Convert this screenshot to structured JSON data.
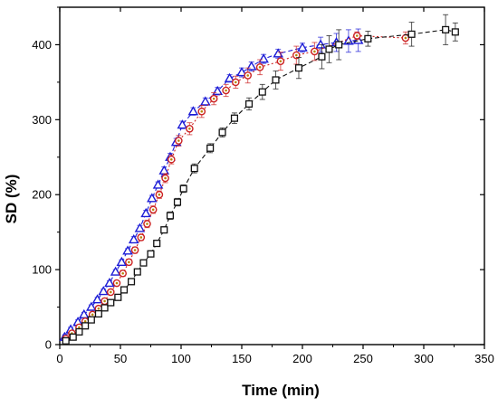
{
  "chart_data": {
    "type": "scatter",
    "title": "",
    "xlabel": "Time (min)",
    "ylabel": "SD (%)",
    "xlim": [
      0,
      350
    ],
    "ylim": [
      0,
      450
    ],
    "xticks": [
      0,
      50,
      100,
      150,
      200,
      250,
      300,
      350
    ],
    "yticks": [
      0,
      100,
      200,
      300,
      400
    ],
    "xtick_labels": [
      "0",
      "50",
      "100",
      "150",
      "200",
      "250",
      "300",
      "350"
    ],
    "ytick_labels": [
      "0",
      "100",
      "200",
      "300",
      "400"
    ],
    "grid": false,
    "legend": "none",
    "series": [
      {
        "marker": "triangle",
        "color": "#1c1cd6",
        "line_style": "dashed",
        "points": [
          {
            "x": 4,
            "y": 10,
            "err": 3
          },
          {
            "x": 9,
            "y": 20,
            "err": 3
          },
          {
            "x": 15,
            "y": 30,
            "err": 3
          },
          {
            "x": 20,
            "y": 40,
            "err": 3
          },
          {
            "x": 26,
            "y": 50,
            "err": 3
          },
          {
            "x": 31,
            "y": 60,
            "err": 3
          },
          {
            "x": 36,
            "y": 71,
            "err": 3
          },
          {
            "x": 41,
            "y": 82,
            "err": 3
          },
          {
            "x": 46,
            "y": 97,
            "err": 3
          },
          {
            "x": 51,
            "y": 110,
            "err": 3
          },
          {
            "x": 56,
            "y": 125,
            "err": 3
          },
          {
            "x": 61,
            "y": 140,
            "err": 4
          },
          {
            "x": 66,
            "y": 155,
            "err": 4
          },
          {
            "x": 71,
            "y": 175,
            "err": 4
          },
          {
            "x": 76,
            "y": 195,
            "err": 4
          },
          {
            "x": 81,
            "y": 213,
            "err": 4
          },
          {
            "x": 86,
            "y": 232,
            "err": 5
          },
          {
            "x": 91,
            "y": 250,
            "err": 5
          },
          {
            "x": 96,
            "y": 270,
            "err": 5
          },
          {
            "x": 101,
            "y": 293,
            "err": 5
          },
          {
            "x": 110,
            "y": 311,
            "err": 5
          },
          {
            "x": 120,
            "y": 324,
            "err": 5
          },
          {
            "x": 130,
            "y": 338,
            "err": 5
          },
          {
            "x": 140,
            "y": 355,
            "err": 5
          },
          {
            "x": 150,
            "y": 363,
            "err": 6
          },
          {
            "x": 158,
            "y": 371,
            "err": 6
          },
          {
            "x": 168,
            "y": 381,
            "err": 6
          },
          {
            "x": 180,
            "y": 388,
            "err": 6
          },
          {
            "x": 200,
            "y": 396,
            "err": 6
          },
          {
            "x": 215,
            "y": 400,
            "err": 10
          },
          {
            "x": 228,
            "y": 403,
            "err": 12
          },
          {
            "x": 238,
            "y": 405,
            "err": 15
          },
          {
            "x": 246,
            "y": 406,
            "err": 15
          }
        ]
      },
      {
        "marker": "circle",
        "color": "#cc2222",
        "fill": "#b8860b",
        "line_style": "dotted",
        "points": [
          {
            "x": 5,
            "y": 8,
            "err": 3
          },
          {
            "x": 10,
            "y": 15,
            "err": 3
          },
          {
            "x": 16,
            "y": 23,
            "err": 3
          },
          {
            "x": 21,
            "y": 31,
            "err": 3
          },
          {
            "x": 27,
            "y": 40,
            "err": 3
          },
          {
            "x": 32,
            "y": 48,
            "err": 3
          },
          {
            "x": 37,
            "y": 58,
            "err": 3
          },
          {
            "x": 42,
            "y": 70,
            "err": 3
          },
          {
            "x": 47,
            "y": 82,
            "err": 3
          },
          {
            "x": 52,
            "y": 95,
            "err": 4
          },
          {
            "x": 57,
            "y": 110,
            "err": 4
          },
          {
            "x": 62,
            "y": 126,
            "err": 4
          },
          {
            "x": 67,
            "y": 143,
            "err": 4
          },
          {
            "x": 72,
            "y": 161,
            "err": 5
          },
          {
            "x": 77,
            "y": 180,
            "err": 5
          },
          {
            "x": 82,
            "y": 200,
            "err": 5
          },
          {
            "x": 87,
            "y": 222,
            "err": 6
          },
          {
            "x": 92,
            "y": 247,
            "err": 6
          },
          {
            "x": 98,
            "y": 272,
            "err": 7
          },
          {
            "x": 107,
            "y": 288,
            "err": 8
          },
          {
            "x": 117,
            "y": 311,
            "err": 8
          },
          {
            "x": 127,
            "y": 328,
            "err": 8
          },
          {
            "x": 137,
            "y": 339,
            "err": 8
          },
          {
            "x": 145,
            "y": 350,
            "err": 8
          },
          {
            "x": 155,
            "y": 359,
            "err": 10
          },
          {
            "x": 165,
            "y": 370,
            "err": 10
          },
          {
            "x": 182,
            "y": 378,
            "err": 12
          },
          {
            "x": 195,
            "y": 386,
            "err": 12
          },
          {
            "x": 210,
            "y": 391,
            "err": 12
          },
          {
            "x": 245,
            "y": 412,
            "err": 5
          },
          {
            "x": 285,
            "y": 409,
            "err": 8
          }
        ]
      },
      {
        "marker": "square",
        "color": "#111111",
        "line_style": "dashed",
        "points": [
          {
            "x": 5,
            "y": 5,
            "err": 2
          },
          {
            "x": 11,
            "y": 10,
            "err": 2
          },
          {
            "x": 16,
            "y": 17,
            "err": 2
          },
          {
            "x": 21,
            "y": 25,
            "err": 2
          },
          {
            "x": 26,
            "y": 33,
            "err": 2
          },
          {
            "x": 32,
            "y": 41,
            "err": 2
          },
          {
            "x": 37,
            "y": 49,
            "err": 2
          },
          {
            "x": 42,
            "y": 56,
            "err": 3
          },
          {
            "x": 48,
            "y": 63,
            "err": 3
          },
          {
            "x": 53,
            "y": 73,
            "err": 3
          },
          {
            "x": 59,
            "y": 84,
            "err": 3
          },
          {
            "x": 64,
            "y": 97,
            "err": 3
          },
          {
            "x": 69,
            "y": 109,
            "err": 3
          },
          {
            "x": 75,
            "y": 121,
            "err": 4
          },
          {
            "x": 80,
            "y": 135,
            "err": 4
          },
          {
            "x": 86,
            "y": 153,
            "err": 4
          },
          {
            "x": 91,
            "y": 172,
            "err": 5
          },
          {
            "x": 97,
            "y": 190,
            "err": 5
          },
          {
            "x": 102,
            "y": 208,
            "err": 5
          },
          {
            "x": 111,
            "y": 235,
            "err": 6
          },
          {
            "x": 124,
            "y": 262,
            "err": 6
          },
          {
            "x": 134,
            "y": 283,
            "err": 6
          },
          {
            "x": 144,
            "y": 302,
            "err": 7
          },
          {
            "x": 156,
            "y": 321,
            "err": 8
          },
          {
            "x": 167,
            "y": 337,
            "err": 10
          },
          {
            "x": 178,
            "y": 353,
            "err": 12
          },
          {
            "x": 197,
            "y": 369,
            "err": 14
          },
          {
            "x": 216,
            "y": 384,
            "err": 16
          },
          {
            "x": 222,
            "y": 394,
            "err": 18
          },
          {
            "x": 230,
            "y": 400,
            "err": 20
          },
          {
            "x": 254,
            "y": 408,
            "err": 10
          },
          {
            "x": 290,
            "y": 414,
            "err": 16
          },
          {
            "x": 318,
            "y": 420,
            "err": 20
          },
          {
            "x": 326,
            "y": 417,
            "err": 12
          }
        ]
      }
    ]
  }
}
